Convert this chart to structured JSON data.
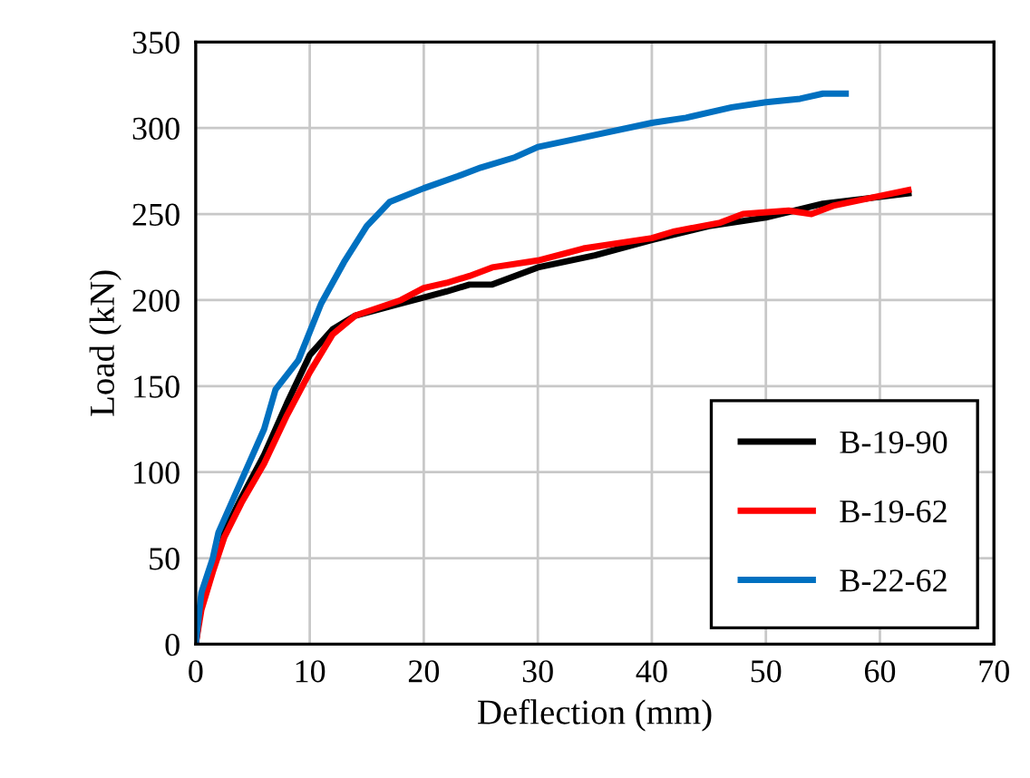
{
  "chart_data": {
    "type": "line",
    "xlabel": "Deflection (mm)",
    "ylabel": "Load (kN)",
    "xlim": [
      0,
      70
    ],
    "xticks": [
      0,
      10,
      20,
      30,
      40,
      50,
      60,
      70
    ],
    "ylim": [
      0,
      350
    ],
    "yticks": [
      0,
      50,
      100,
      150,
      200,
      250,
      300,
      350
    ],
    "grid": true,
    "legend": "bottom right",
    "line_style": "solid",
    "series": [
      {
        "name": "B-19-90",
        "color": "#000000",
        "x": [
          0,
          0.5,
          2.5,
          4,
          6,
          8,
          10,
          12,
          14,
          18,
          22,
          24,
          26,
          30,
          35,
          40,
          45,
          50,
          55,
          60,
          62.5
        ],
        "values": [
          0,
          25,
          65,
          85,
          110,
          140,
          168,
          183,
          191,
          198,
          205,
          209,
          209,
          219,
          226,
          235,
          243,
          248,
          256,
          260,
          262
        ]
      },
      {
        "name": "B-19-62",
        "color": "#ff0000",
        "x": [
          0,
          0.5,
          1.5,
          2.5,
          4,
          6,
          8,
          10,
          12,
          14,
          18,
          20,
          22,
          24,
          26,
          30,
          34,
          40,
          42,
          46,
          48,
          52,
          54,
          56,
          62.5
        ],
        "values": [
          0,
          20,
          42,
          62,
          82,
          105,
          133,
          158,
          180,
          191,
          200,
          207,
          210,
          214,
          219,
          223,
          230,
          236,
          240,
          245,
          250,
          252,
          250,
          255,
          264
        ]
      },
      {
        "name": "B-22-62",
        "color": "#0070c0",
        "x": [
          0,
          0.5,
          1.5,
          2,
          3,
          4,
          6,
          7,
          9,
          11,
          13,
          15,
          17,
          20,
          23,
          25,
          28,
          30,
          35,
          40,
          43,
          47,
          50,
          53,
          55,
          57
        ],
        "values": [
          0,
          30,
          50,
          65,
          80,
          95,
          125,
          148,
          165,
          198,
          222,
          243,
          257,
          265,
          272,
          277,
          283,
          289,
          296,
          303,
          306,
          312,
          315,
          317,
          320,
          320
        ]
      }
    ]
  }
}
